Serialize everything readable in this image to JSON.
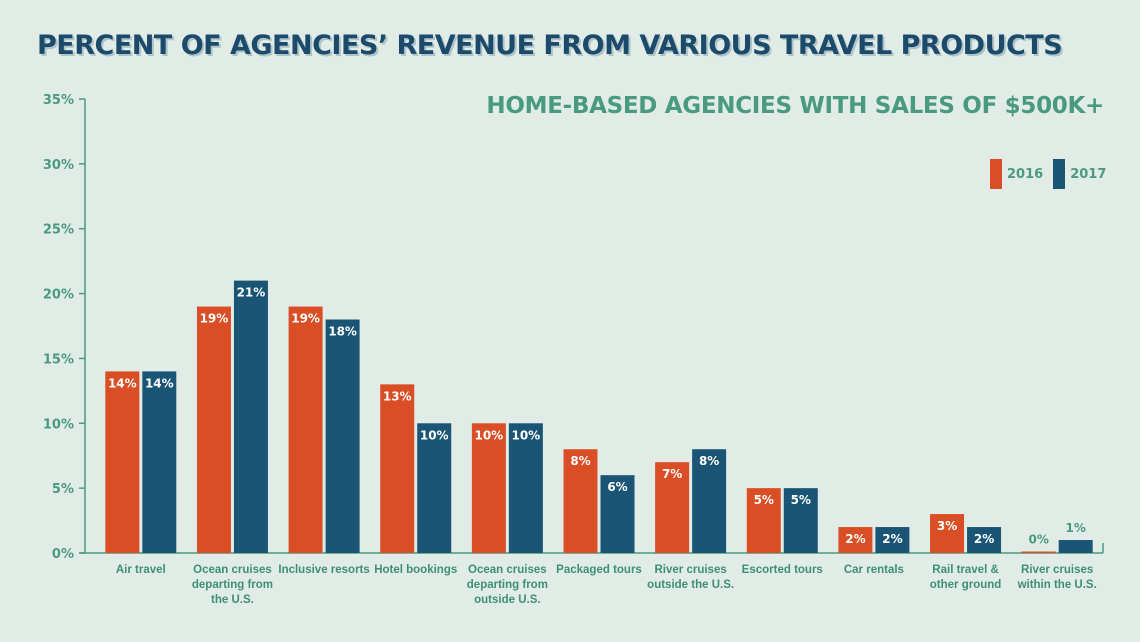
{
  "title": "PERCENT OF AGENCIES’ REVENUE FROM VARIOUS TRAVEL PRODUCTS",
  "subtitle": "HOME-BASED AGENCIES WITH SALES OF $500K+",
  "colors": {
    "2016": "#d94e24",
    "2017": "#1a5576",
    "axis": "#4a9a80",
    "text": "#3e8f77"
  },
  "legend": [
    {
      "name": "2016",
      "color": "#d94e24"
    },
    {
      "name": "2017",
      "color": "#1a5576"
    }
  ],
  "chart_data": {
    "type": "bar",
    "title": "PERCENT OF AGENCIES’ REVENUE FROM VARIOUS TRAVEL PRODUCTS",
    "subtitle": "HOME-BASED AGENCIES WITH SALES OF $500K+",
    "categories": [
      [
        "Air travel"
      ],
      [
        "Ocean cruises",
        "departing from",
        "the U.S."
      ],
      [
        "Inclusive resorts"
      ],
      [
        "Hotel bookings"
      ],
      [
        "Ocean cruises",
        "departing from",
        "outside U.S."
      ],
      [
        "Packaged tours"
      ],
      [
        "River cruises",
        "outside the U.S."
      ],
      [
        "Escorted tours"
      ],
      [
        "Car rentals"
      ],
      [
        "Rail travel &",
        "other ground"
      ],
      [
        "River cruises",
        "within the U.S."
      ]
    ],
    "series": [
      {
        "name": "2016",
        "values": [
          14,
          19,
          19,
          13,
          10,
          8,
          7,
          5,
          2,
          3,
          0
        ]
      },
      {
        "name": "2017",
        "values": [
          14,
          21,
          18,
          10,
          10,
          6,
          8,
          5,
          2,
          2,
          1
        ]
      }
    ],
    "value_labels": [
      [
        "14%",
        "19%",
        "19%",
        "13%",
        "10%",
        "8%",
        "7%",
        "5%",
        "2%",
        "3%",
        "0%"
      ],
      [
        "14%",
        "21%",
        "18%",
        "10%",
        "10%",
        "6%",
        "8%",
        "5%",
        "2%",
        "2%",
        "1%"
      ]
    ],
    "yticks": [
      "0%",
      "5%",
      "10%",
      "15%",
      "20%",
      "25%",
      "30%",
      "35%"
    ],
    "ylim": [
      0,
      35
    ],
    "legend_position": "top-right",
    "grid": false
  }
}
